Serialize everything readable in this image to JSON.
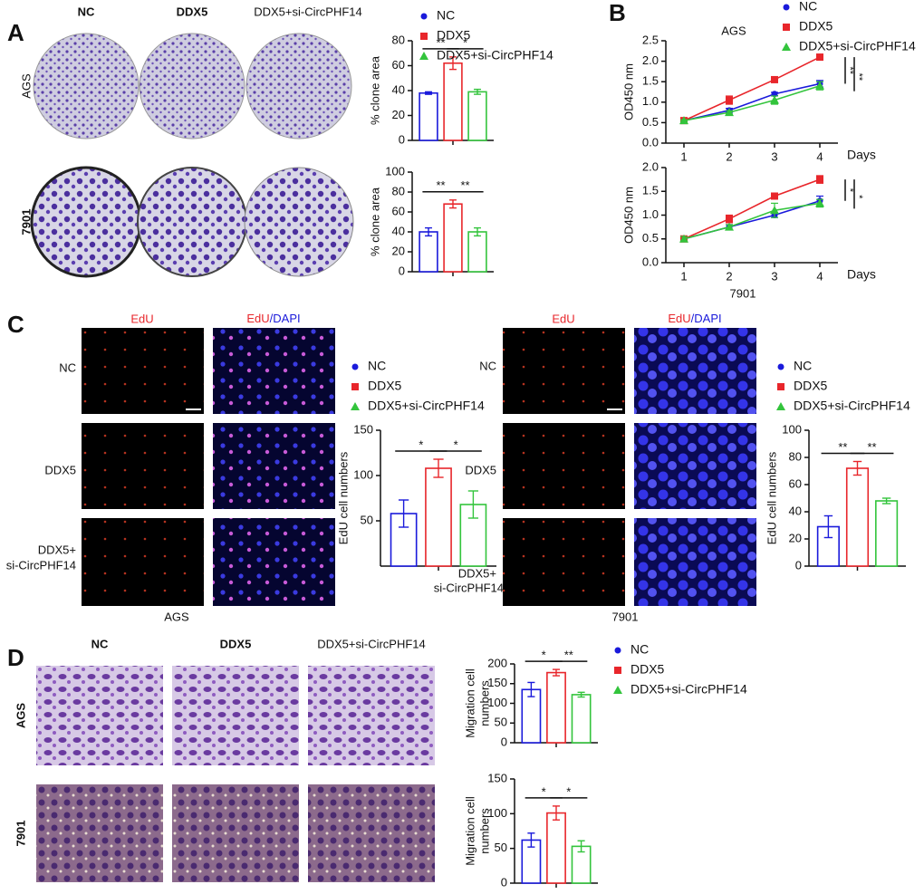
{
  "panel_labels": [
    "A",
    "B",
    "C",
    "D"
  ],
  "panel_a": {
    "columns": [
      "NC",
      "DDX5",
      "DDX5+si-CircPHF14"
    ],
    "rows": [
      "AGS",
      "7901"
    ]
  },
  "panel_c": {
    "ags": {
      "channel_1": "EdU",
      "channel_2": {
        "red": "EdU",
        "blue": "/DAPI"
      },
      "rows": [
        "NC",
        "DDX5",
        [
          "DDX5+",
          "si-CircPHF14"
        ]
      ],
      "caption": "AGS"
    },
    "cell_7901": {
      "channel_1": "EdU",
      "channel_2": {
        "red": "EdU",
        "blue": "/DAPI"
      },
      "rows": [
        "NC",
        "DDX5",
        [
          "DDX5+",
          "si-CircPHF14"
        ]
      ],
      "caption": "7901"
    }
  },
  "panel_d": {
    "columns": [
      "NC",
      "DDX5",
      "DDX5+si-CircPHF14"
    ],
    "rows": [
      "AGS",
      "7901"
    ]
  },
  "chart_data": [
    {
      "type": "bar",
      "ylabel": "% clone area",
      "ylim": [
        0,
        80
      ],
      "yticks": [
        0,
        20,
        40,
        60,
        80
      ],
      "legend": true,
      "series": [
        {
          "name": "NC",
          "color": "#1a1adb",
          "values": [
            38
          ],
          "errors": [
            1
          ]
        },
        {
          "name": "DDX5",
          "color": "#e8262b",
          "values": [
            62
          ],
          "errors": [
            5
          ]
        },
        {
          "name": "DDX5+si-CircPHF14",
          "color": "#33c43c",
          "values": [
            39
          ],
          "errors": [
            2
          ]
        }
      ],
      "annotations": [
        "**",
        "*"
      ]
    },
    {
      "type": "bar",
      "ylabel": "% clone area",
      "ylim": [
        0,
        100
      ],
      "yticks": [
        0,
        20,
        40,
        60,
        80,
        100
      ],
      "legend": false,
      "series": [
        {
          "color": "#1a1adb",
          "values": [
            40
          ],
          "errors": [
            4
          ]
        },
        {
          "color": "#e8262b",
          "values": [
            68
          ],
          "errors": [
            4
          ]
        },
        {
          "color": "#33c43c",
          "values": [
            40
          ],
          "errors": [
            4
          ]
        }
      ],
      "annotations": [
        "**",
        "**"
      ]
    },
    {
      "type": "line",
      "title": "AGS",
      "ylabel": "OD450 nm",
      "xlabel": "Days",
      "x": [
        1,
        2,
        3,
        4
      ],
      "xlim": [
        0.6,
        4.4
      ],
      "xticks": [
        1,
        2,
        3,
        4
      ],
      "ylim": [
        0,
        2.5
      ],
      "yticks": [
        {
          "value": 0,
          "label": "0.0"
        },
        0.5,
        {
          "value": 1,
          "label": "1.0"
        },
        1.5,
        {
          "value": 2,
          "label": "2.0"
        },
        2.5
      ],
      "legend": true,
      "series": [
        {
          "name": "NC",
          "color": "#1a1adb",
          "values": [
            0.55,
            0.8,
            1.2,
            1.45
          ],
          "errors": [
            0.02,
            0.05,
            0.04,
            0.08
          ]
        },
        {
          "name": "DDX5",
          "color": "#e8262b",
          "values": [
            0.55,
            1.05,
            1.55,
            2.1
          ],
          "errors": [
            0.02,
            0.1,
            0.05,
            0.07
          ]
        },
        {
          "name": "DDX5+si-CircPHF14",
          "color": "#33c43c",
          "values": [
            0.55,
            0.75,
            1.05,
            1.4
          ],
          "errors": [
            0.02,
            0.04,
            0.1,
            0.1
          ]
        }
      ],
      "annotations": [
        "**",
        "**"
      ]
    },
    {
      "type": "line",
      "caption": "7901",
      "ylabel": "OD450 nm",
      "xlabel": "Days",
      "x": [
        1,
        2,
        3,
        4
      ],
      "xlim": [
        0.6,
        4.4
      ],
      "xticks": [
        1,
        2,
        3,
        4
      ],
      "ylim": [
        0,
        2
      ],
      "yticks": [
        {
          "value": 0,
          "label": "0.0"
        },
        0.5,
        {
          "value": 1,
          "label": "1.0"
        },
        1.5,
        {
          "value": 2,
          "label": "2.0"
        }
      ],
      "legend": false,
      "series": [
        {
          "color": "#1a1adb",
          "values": [
            0.5,
            0.75,
            1.0,
            1.3
          ],
          "errors": [
            0.03,
            0.05,
            0.05,
            0.1
          ]
        },
        {
          "color": "#e8262b",
          "values": [
            0.5,
            0.92,
            1.4,
            1.75
          ],
          "errors": [
            0.03,
            0.08,
            0.06,
            0.08
          ]
        },
        {
          "color": "#33c43c",
          "values": [
            0.5,
            0.75,
            1.1,
            1.25
          ],
          "errors": [
            0.05,
            0.05,
            0.15,
            0.08
          ]
        }
      ],
      "annotations": [
        "*",
        "*"
      ]
    },
    {
      "type": "bar",
      "ylabel": "EdU cell numbers",
      "ylim": [
        0,
        150
      ],
      "yticks": [
        50,
        100,
        150
      ],
      "legend": true,
      "series": [
        {
          "name": "NC",
          "color": "#1a1adb",
          "values": [
            58
          ],
          "errors": [
            15
          ]
        },
        {
          "name": "DDX5",
          "color": "#e8262b",
          "values": [
            108
          ],
          "errors": [
            10
          ]
        },
        {
          "name": "DDX5+si-CircPHF14",
          "color": "#33c43c",
          "values": [
            68
          ],
          "errors": [
            15
          ]
        }
      ],
      "annotations": [
        "*",
        "*"
      ]
    },
    {
      "type": "bar",
      "ylabel": "EdU cell numbers",
      "ylim": [
        0,
        100
      ],
      "yticks": [
        0,
        20,
        40,
        60,
        80,
        100
      ],
      "legend": true,
      "series": [
        {
          "name": "NC",
          "color": "#1a1adb",
          "values": [
            29
          ],
          "errors": [
            8
          ]
        },
        {
          "name": "DDX5",
          "color": "#e8262b",
          "values": [
            72
          ],
          "errors": [
            5
          ]
        },
        {
          "name": "DDX5+si-CircPHF14",
          "color": "#33c43c",
          "values": [
            48
          ],
          "errors": [
            2
          ]
        }
      ],
      "annotations": [
        "**",
        "**"
      ]
    },
    {
      "type": "bar",
      "ylabel": [
        "Migration cell",
        "numbers"
      ],
      "ylim": [
        0,
        200
      ],
      "yticks": [
        0,
        50,
        100,
        150,
        200
      ],
      "legend": true,
      "series": [
        {
          "name": "NC",
          "color": "#1a1adb",
          "values": [
            135
          ],
          "errors": [
            18
          ]
        },
        {
          "name": "DDX5",
          "color": "#e8262b",
          "values": [
            178
          ],
          "errors": [
            8
          ]
        },
        {
          "name": "DDX5+si-CircPHF14",
          "color": "#33c43c",
          "values": [
            122
          ],
          "errors": [
            6
          ]
        }
      ],
      "annotations": [
        "*",
        "**"
      ]
    },
    {
      "type": "bar",
      "ylabel": [
        "Migration cell",
        "numbers"
      ],
      "ylim": [
        0,
        150
      ],
      "yticks": [
        0,
        50,
        100,
        150
      ],
      "legend": false,
      "series": [
        {
          "color": "#1a1adb",
          "values": [
            62
          ],
          "errors": [
            10
          ]
        },
        {
          "color": "#e8262b",
          "values": [
            101
          ],
          "errors": [
            10
          ]
        },
        {
          "color": "#33c43c",
          "values": [
            53
          ],
          "errors": [
            8
          ]
        }
      ],
      "annotations": [
        "*",
        "*"
      ]
    }
  ]
}
